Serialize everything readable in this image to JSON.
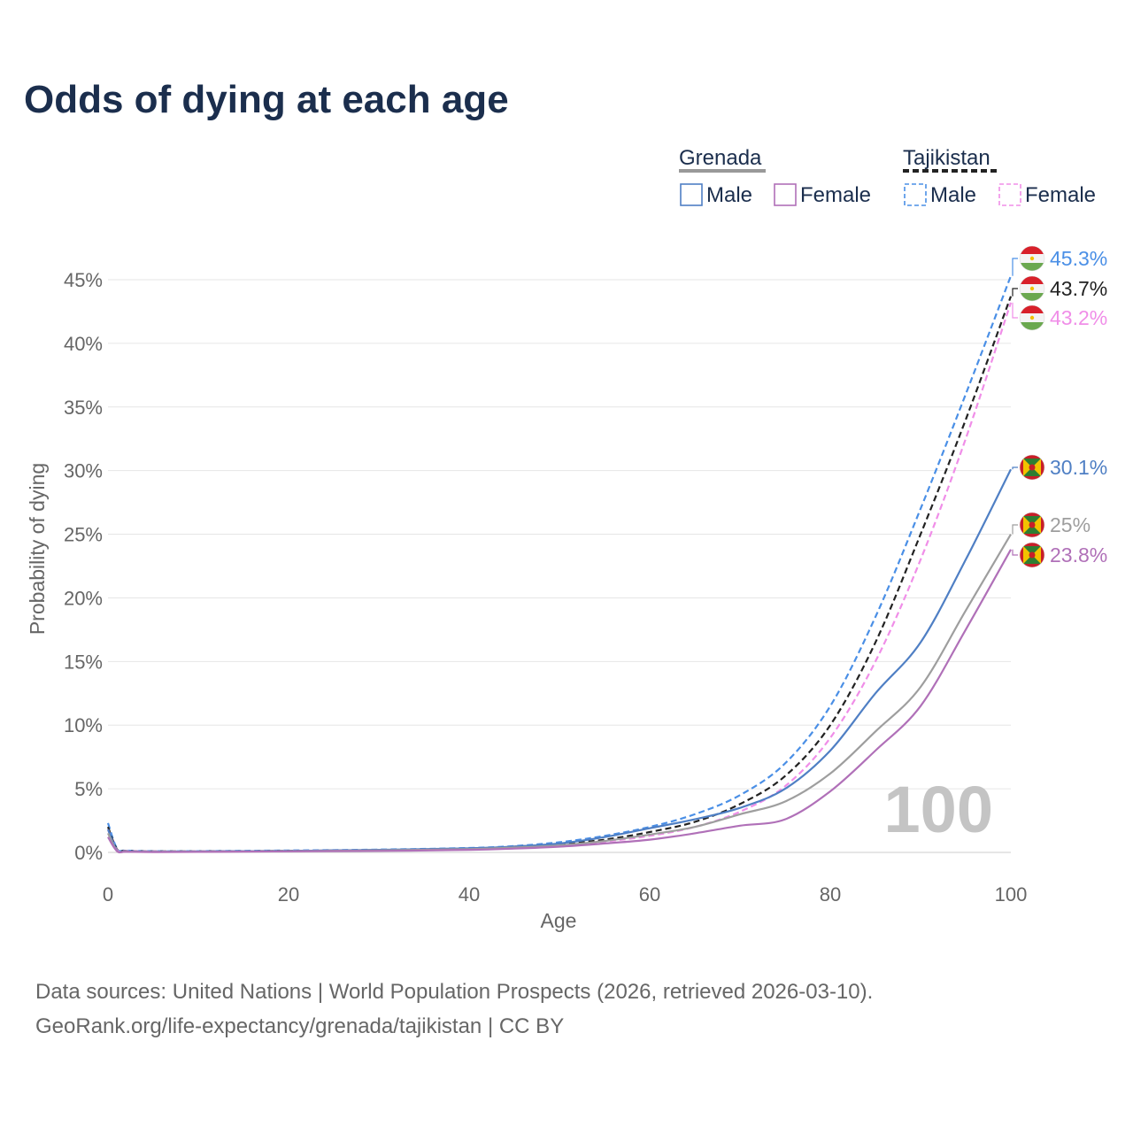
{
  "chart_data": {
    "type": "line",
    "title": "Odds of dying at each age",
    "xlabel": "Age",
    "ylabel": "Probability of dying",
    "xlim": [
      0,
      100
    ],
    "ylim": [
      0,
      45
    ],
    "x_ticks": [
      0,
      20,
      40,
      60,
      80,
      100
    ],
    "y_ticks": [
      0,
      5,
      10,
      15,
      20,
      25,
      30,
      35,
      40,
      45
    ],
    "y_tick_labels": [
      "0%",
      "5%",
      "10%",
      "15%",
      "20%",
      "25%",
      "30%",
      "35%",
      "40%",
      "45%"
    ],
    "watermark": "100",
    "grid": true,
    "legend": {
      "groups": [
        {
          "country": "Grenada",
          "items": [
            "Male",
            "Female"
          ],
          "line_color": "#999999",
          "dash": "solid"
        },
        {
          "country": "Tajikistan",
          "items": [
            "Male",
            "Female"
          ],
          "line_color": "#222222",
          "dash": "dashed"
        }
      ]
    },
    "series": [
      {
        "name": "Tajikistan Male",
        "country": "Tajikistan",
        "color": "#4a8fe6",
        "dash": true,
        "end_label": "45.3%",
        "x": [
          0,
          1,
          2,
          5,
          10,
          20,
          30,
          40,
          45,
          50,
          55,
          60,
          65,
          70,
          75,
          80,
          85,
          90,
          95,
          100
        ],
        "y": [
          2.3,
          0.3,
          0.15,
          0.1,
          0.1,
          0.15,
          0.22,
          0.35,
          0.5,
          0.8,
          1.3,
          2.0,
          3.0,
          4.5,
          7.0,
          11.5,
          18.5,
          27.0,
          36.0,
          45.3
        ]
      },
      {
        "name": "Tajikistan Total",
        "country": "Tajikistan",
        "color": "#222222",
        "dash": true,
        "end_label": "43.7%",
        "x": [
          0,
          1,
          2,
          5,
          10,
          20,
          30,
          40,
          45,
          50,
          55,
          60,
          65,
          70,
          75,
          80,
          85,
          90,
          95,
          100
        ],
        "y": [
          2.0,
          0.25,
          0.12,
          0.08,
          0.08,
          0.12,
          0.18,
          0.3,
          0.45,
          0.65,
          1.0,
          1.6,
          2.4,
          3.8,
          6.0,
          10.0,
          16.5,
          25.0,
          34.0,
          43.7
        ]
      },
      {
        "name": "Tajikistan Female",
        "country": "Tajikistan",
        "color": "#f08ee8",
        "dash": true,
        "end_label": "43.2%",
        "x": [
          0,
          1,
          2,
          5,
          10,
          20,
          30,
          40,
          45,
          50,
          55,
          60,
          65,
          70,
          75,
          80,
          85,
          90,
          95,
          100
        ],
        "y": [
          1.8,
          0.2,
          0.1,
          0.07,
          0.07,
          0.1,
          0.15,
          0.25,
          0.38,
          0.55,
          0.85,
          1.3,
          2.0,
          3.2,
          5.2,
          9.0,
          15.0,
          23.0,
          32.5,
          43.2
        ]
      },
      {
        "name": "Grenada Male",
        "country": "Grenada",
        "color": "#4f7fc4",
        "dash": false,
        "end_label": "30.1%",
        "x": [
          0,
          1,
          2,
          5,
          10,
          20,
          30,
          40,
          45,
          50,
          55,
          60,
          65,
          70,
          75,
          80,
          85,
          90,
          95,
          100
        ],
        "y": [
          1.8,
          0.15,
          0.08,
          0.05,
          0.06,
          0.12,
          0.2,
          0.32,
          0.45,
          0.7,
          1.2,
          1.9,
          2.6,
          3.5,
          5.0,
          8.0,
          12.5,
          16.5,
          23.0,
          30.1
        ]
      },
      {
        "name": "Grenada Total",
        "country": "Grenada",
        "color": "#9e9e9e",
        "dash": false,
        "end_label": "25%",
        "x": [
          0,
          1,
          2,
          5,
          10,
          20,
          30,
          40,
          45,
          50,
          55,
          60,
          65,
          70,
          75,
          80,
          85,
          90,
          95,
          100
        ],
        "y": [
          1.5,
          0.12,
          0.06,
          0.04,
          0.05,
          0.1,
          0.16,
          0.26,
          0.38,
          0.55,
          0.9,
          1.4,
          2.0,
          3.0,
          4.0,
          6.2,
          9.5,
          13.0,
          19.0,
          25.0
        ]
      },
      {
        "name": "Grenada Female",
        "country": "Grenada",
        "color": "#b070b8",
        "dash": false,
        "end_label": "23.8%",
        "x": [
          0,
          1,
          2,
          5,
          10,
          20,
          30,
          40,
          45,
          50,
          55,
          60,
          65,
          70,
          75,
          80,
          85,
          90,
          95,
          100
        ],
        "y": [
          1.2,
          0.1,
          0.05,
          0.03,
          0.04,
          0.08,
          0.12,
          0.2,
          0.3,
          0.45,
          0.7,
          1.0,
          1.5,
          2.1,
          2.6,
          4.8,
          8.0,
          11.5,
          17.5,
          23.8
        ]
      }
    ]
  },
  "footer": {
    "sources": "Data sources: United Nations | World Population Prospects (2026, retrieved 2026-03-10).",
    "credit": "GeoRank.org/life-expectancy/grenada/tajikistan | CC BY"
  }
}
